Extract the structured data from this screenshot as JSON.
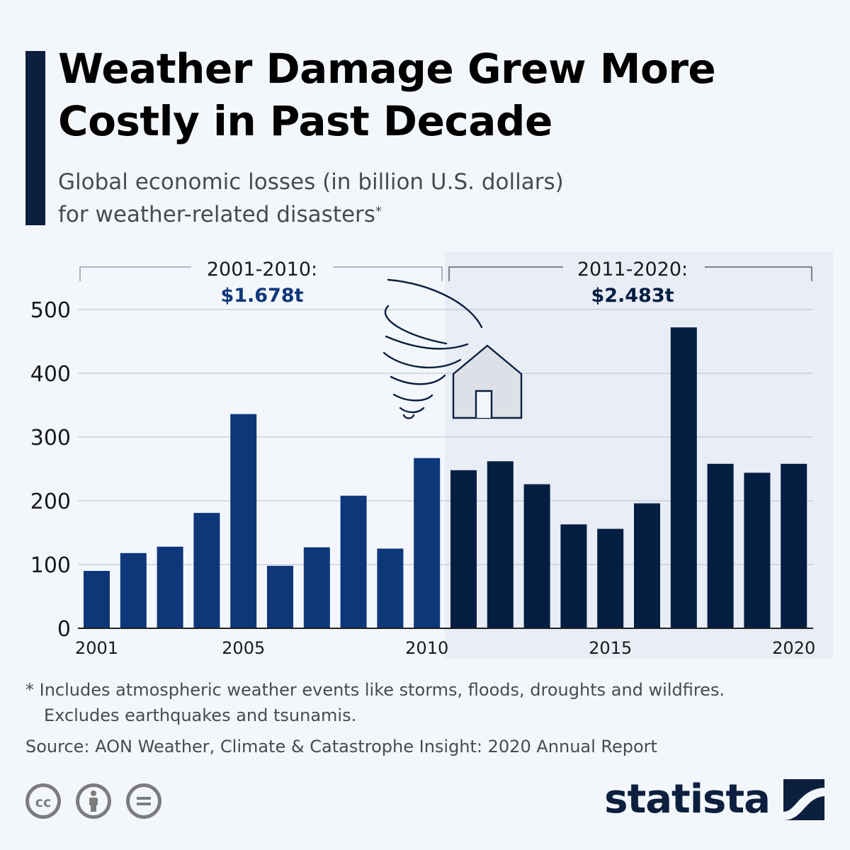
{
  "title_line1": "Weather Damage Grew More",
  "title_line2": "Costly in Past Decade",
  "subtitle_line1": "Global economic losses (in billion U.S. dollars)",
  "subtitle_line2": "for weather-related disasters",
  "subtitle_mark": "*",
  "colors": {
    "first_decade": "#0e377a",
    "second_decade": "#041e42",
    "highlight_bg": "#e8edf6",
    "annotation_value": "#0e377a"
  },
  "annotations": [
    {
      "label": "2001-2010:",
      "value": "$1.678t"
    },
    {
      "label": "2011-2020:",
      "value": "$2.483t"
    }
  ],
  "icons": [
    "tornado-icon",
    "house-icon"
  ],
  "chart_data": {
    "type": "bar",
    "x": [
      2001,
      2002,
      2003,
      2004,
      2005,
      2006,
      2007,
      2008,
      2009,
      2010,
      2011,
      2012,
      2013,
      2014,
      2015,
      2016,
      2017,
      2018,
      2019,
      2020
    ],
    "values": [
      90,
      118,
      128,
      181,
      336,
      98,
      127,
      208,
      125,
      267,
      248,
      262,
      226,
      163,
      156,
      196,
      472,
      258,
      244,
      258
    ],
    "x_tick_labels": [
      "2001",
      "2005",
      "2010",
      "2015",
      "2020"
    ],
    "y_ticks": [
      0,
      100,
      200,
      300,
      400,
      500
    ],
    "ylim": [
      0,
      550
    ],
    "grid": true,
    "highlight_range": [
      2011,
      2020
    ]
  },
  "footnote_line1": "* Includes atmospheric weather events like storms, floods, droughts and wildfires.",
  "footnote_line2": "Excludes earthquakes and tsunamis.",
  "source": "Source: AON Weather, Climate & Catastrophe Insight: 2020 Annual Report",
  "license_icons": [
    "creative-commons-icon",
    "attribution-icon",
    "no-derivatives-icon"
  ],
  "brand": "statista"
}
